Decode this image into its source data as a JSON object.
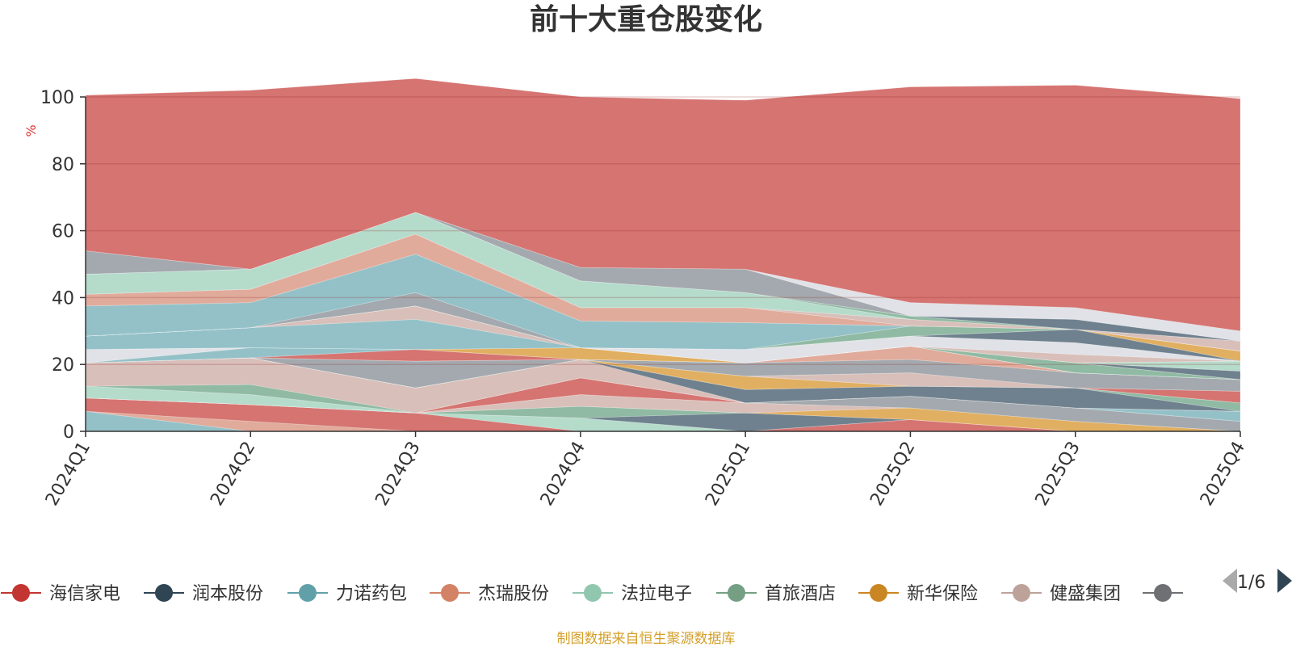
{
  "title": "前十大重仓股变化",
  "footer": "制图数据来自恒生聚源数据库",
  "pager": {
    "text": "1/6"
  },
  "chart_data": {
    "type": "area",
    "stacked": true,
    "title": "前十大重仓股变化",
    "ylabel": "%",
    "ylim": [
      0,
      100
    ],
    "yticks": [
      0,
      20,
      40,
      60,
      80,
      100
    ],
    "grid": true,
    "categories": [
      "2024Q1",
      "2024Q2",
      "2024Q3",
      "2024Q4",
      "2025Q1",
      "2025Q2",
      "2025Q3",
      "2025Q4"
    ],
    "legend_visible": [
      "海信家电",
      "润本股份",
      "力诺药包",
      "杰瑞股份",
      "法拉电子",
      "首旅酒店",
      "新华保险",
      "健盛集团",
      "…"
    ],
    "series": [
      {
        "name": "力诺药包",
        "color": "#91bfc6",
        "values": [
          6,
          0,
          0,
          0,
          0,
          0,
          0,
          0
        ]
      },
      {
        "name": "杰瑞股份",
        "color": "#e0a898",
        "values": [
          0,
          3,
          0,
          0,
          0,
          0,
          0,
          0
        ]
      },
      {
        "name": "海信家电",
        "color": "#d4706c",
        "values": [
          4,
          5,
          5.5,
          0,
          0,
          3.5,
          0,
          0
        ]
      },
      {
        "name": "法拉电子",
        "color": "#b3dac9",
        "values": [
          0,
          0,
          0,
          4,
          0,
          0,
          0,
          0
        ]
      },
      {
        "name": "润本股份",
        "color": "#6a7d8a",
        "values": [
          0,
          0,
          0,
          0,
          5.5,
          0,
          0,
          0
        ]
      },
      {
        "name": "首旅酒店",
        "color": "#8cb8a0",
        "values": [
          0,
          0,
          0,
          3.5,
          0,
          0,
          0,
          0
        ]
      },
      {
        "name": "新华保险",
        "color": "#e0ac5c",
        "values": [
          0,
          0,
          0,
          0,
          0,
          3.5,
          3,
          0
        ]
      },
      {
        "name": "健盛集团",
        "color": "#d7bdb7",
        "values": [
          0,
          0,
          0,
          3.5,
          3,
          0,
          0,
          0
        ]
      },
      {
        "name": "润本股份",
        "color": "#a0a6ab",
        "values": [
          0,
          0,
          0,
          0,
          0,
          3.5,
          4,
          3
        ]
      },
      {
        "name": "海信家电",
        "color": "#d4706c",
        "values": [
          0,
          0,
          0,
          5,
          0,
          0,
          0,
          0
        ]
      },
      {
        "name": "力诺药包",
        "color": "#91bfc6",
        "values": [
          0,
          0,
          0,
          0,
          0,
          0,
          0,
          3
        ]
      },
      {
        "name": "法拉电子",
        "color": "#b3dac9",
        "values": [
          3.5,
          3,
          0,
          0,
          0,
          0,
          0,
          0
        ]
      },
      {
        "name": "首旅酒店",
        "color": "#8cb8a0",
        "values": [
          0,
          3,
          0,
          0,
          0,
          0,
          0,
          0
        ]
      },
      {
        "name": "健盛集团",
        "color": "#d7bdb7",
        "values": [
          7,
          8,
          7.5,
          5.5,
          0,
          0,
          0,
          0
        ]
      },
      {
        "name": "润本股份",
        "color": "#6a7d8a",
        "values": [
          0,
          0,
          0,
          0,
          4,
          3,
          6,
          0
        ]
      },
      {
        "name": "首旅酒店",
        "color": "#8cb8a0",
        "values": [
          0,
          0,
          0,
          0,
          0,
          0,
          0,
          2.5
        ]
      },
      {
        "name": "新华保险",
        "color": "#e0ac5c",
        "values": [
          0,
          0,
          0,
          0,
          4,
          0,
          0,
          0
        ]
      },
      {
        "name": "海信家电",
        "color": "#d4706c",
        "values": [
          0,
          0,
          0,
          0,
          0,
          0,
          0,
          3.5
        ]
      },
      {
        "name": "健盛集团",
        "color": "#d7bdb7",
        "values": [
          0,
          0,
          0,
          0,
          0,
          4,
          0,
          0
        ]
      },
      {
        "name": "润本股份",
        "color": "#a0a6ab",
        "values": [
          0,
          0,
          8,
          0,
          4,
          4,
          4.5,
          3.5
        ]
      },
      {
        "name": "杰瑞股份",
        "color": "#e0a898",
        "values": [
          0,
          0,
          0,
          0,
          0,
          4,
          0,
          0
        ]
      },
      {
        "name": "海信家电",
        "color": "#d4706c",
        "values": [
          0,
          0,
          3.5,
          0,
          0,
          0,
          0,
          0
        ]
      },
      {
        "name": "力诺药包",
        "color": "#91bfc6",
        "values": [
          0,
          3,
          0,
          0,
          0,
          0,
          0,
          0
        ]
      },
      {
        "name": "首旅酒店",
        "color": "#dfe1e6",
        "values": [
          4,
          0,
          0,
          0,
          0,
          0,
          0,
          0
        ]
      },
      {
        "name": "新华保险",
        "color": "#e0ac5c",
        "values": [
          0,
          0,
          0,
          3.5,
          0,
          0,
          0,
          0
        ]
      },
      {
        "name": "首旅酒店",
        "color": "#8cb8a0",
        "values": [
          0,
          0,
          0,
          0,
          0,
          0,
          3,
          0
        ]
      },
      {
        "name": "力诺药包",
        "color": "#91bfc6",
        "values": [
          4,
          6,
          9,
          0,
          0,
          0,
          0,
          0
        ]
      },
      {
        "name": "健盛集团",
        "color": "#d7bdb7",
        "values": [
          0,
          0,
          4,
          0,
          0,
          0,
          0,
          0
        ]
      },
      {
        "name": "润本股份",
        "color": "#6a7d8a",
        "values": [
          0,
          0,
          0,
          0,
          0,
          0,
          0,
          2.5
        ]
      },
      {
        "name": "法拉电子",
        "color": "#b3dac9",
        "values": [
          0,
          0,
          0,
          0,
          0,
          0,
          0,
          3
        ]
      },
      {
        "name": "健盛集团",
        "color": "#d7bdb7",
        "values": [
          0,
          0,
          0,
          0,
          0,
          0,
          2.5,
          0
        ]
      },
      {
        "name": "首旅酒店",
        "color": "#dfe1e6",
        "values": [
          0,
          0,
          0,
          0,
          4,
          3,
          3.5,
          0
        ]
      },
      {
        "name": "润本股份",
        "color": "#6a7d8a",
        "values": [
          0,
          0,
          0,
          0,
          0,
          0,
          4,
          0
        ]
      },
      {
        "name": "新华保险",
        "color": "#e0ac5c",
        "values": [
          0,
          0,
          0,
          0,
          0,
          0,
          0,
          3
        ]
      },
      {
        "name": "首旅酒店",
        "color": "#8cb8a0",
        "values": [
          0,
          0,
          0,
          0,
          0,
          3,
          0,
          0
        ]
      },
      {
        "name": "润本股份",
        "color": "#a0a6ab",
        "values": [
          0,
          0,
          4,
          0,
          0,
          0,
          0,
          0
        ]
      },
      {
        "name": "力诺药包",
        "color": "#91bfc6",
        "values": [
          9,
          7.5,
          11.5,
          8,
          8,
          0,
          0,
          0
        ]
      },
      {
        "name": "杰瑞股份",
        "color": "#e0a898",
        "values": [
          3.5,
          4,
          6,
          4,
          4.5,
          0,
          0,
          0
        ]
      },
      {
        "name": "健盛集团",
        "color": "#d7bdb7",
        "values": [
          0,
          0,
          0,
          0,
          0,
          2,
          0,
          3
        ]
      },
      {
        "name": "法拉电子",
        "color": "#b3dac9",
        "values": [
          6,
          6,
          6.5,
          8,
          4.5,
          0,
          0,
          0
        ]
      },
      {
        "name": "首旅酒店",
        "color": "#8cb8a0",
        "values": [
          0,
          0,
          0,
          0,
          0,
          1,
          0,
          0
        ]
      },
      {
        "name": "润本股份",
        "color": "#6a7d8a",
        "values": [
          0,
          0,
          0,
          0,
          0,
          0,
          3,
          0
        ]
      },
      {
        "name": "润本股份",
        "color": "#a0a6ab",
        "values": [
          7,
          0,
          0,
          4,
          7,
          0,
          0,
          0
        ]
      },
      {
        "name": "首旅酒店",
        "color": "#dfe1e6",
        "values": [
          0,
          0,
          0,
          0,
          0,
          4,
          3.5,
          3
        ]
      },
      {
        "name": "海信家电",
        "color": "#d4706c",
        "values": [
          46.5,
          53.5,
          40,
          51,
          50.5,
          64.5,
          66.5,
          69.5
        ]
      }
    ]
  }
}
